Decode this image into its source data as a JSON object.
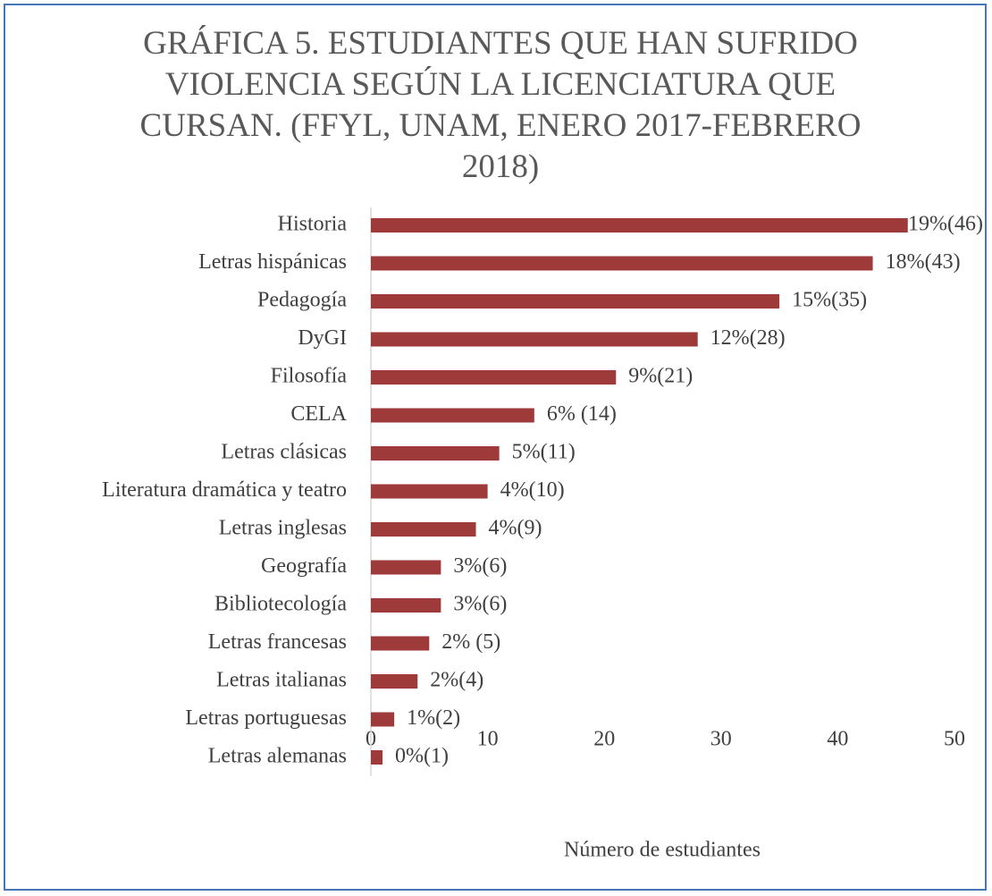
{
  "chart_data": {
    "type": "bar",
    "orientation": "horizontal",
    "title": "GRÁFICA 5. ESTUDIANTES QUE HAN SUFRIDO VIOLENCIA SEGÚN LA LICENCIATURA QUE CURSAN. (FFYL, UNAM, ENERO 2017-FEBRERO 2018)",
    "xlabel": "Número de estudiantes",
    "categories": [
      "Historia",
      "Letras hispánicas",
      "Pedagogía",
      "DyGI",
      "Filosofía",
      "CELA",
      "Letras clásicas",
      "Literatura dramática y teatro",
      "Letras inglesas",
      "Geografía",
      "Bibliotecología",
      "Letras francesas",
      "Letras italianas",
      "Letras portuguesas",
      "Letras alemanas"
    ],
    "values": [
      46,
      43,
      35,
      28,
      21,
      14,
      11,
      10,
      9,
      6,
      6,
      5,
      4,
      2,
      1
    ],
    "value_labels": [
      "19%(46)",
      "18%(43)",
      "15%(35)",
      "12%(28)",
      "9%(21)",
      "6% (14)",
      "5%(11)",
      "4%(10)",
      "4%(9)",
      "3%(6)",
      "3%(6)",
      "2% (5)",
      "2%(4)",
      "1%(2)",
      "0%(1)"
    ],
    "color": "#9e3a3a",
    "xlim": [
      0,
      50
    ],
    "xticks": [
      0,
      10,
      20,
      30,
      40,
      50
    ],
    "grid": false
  }
}
